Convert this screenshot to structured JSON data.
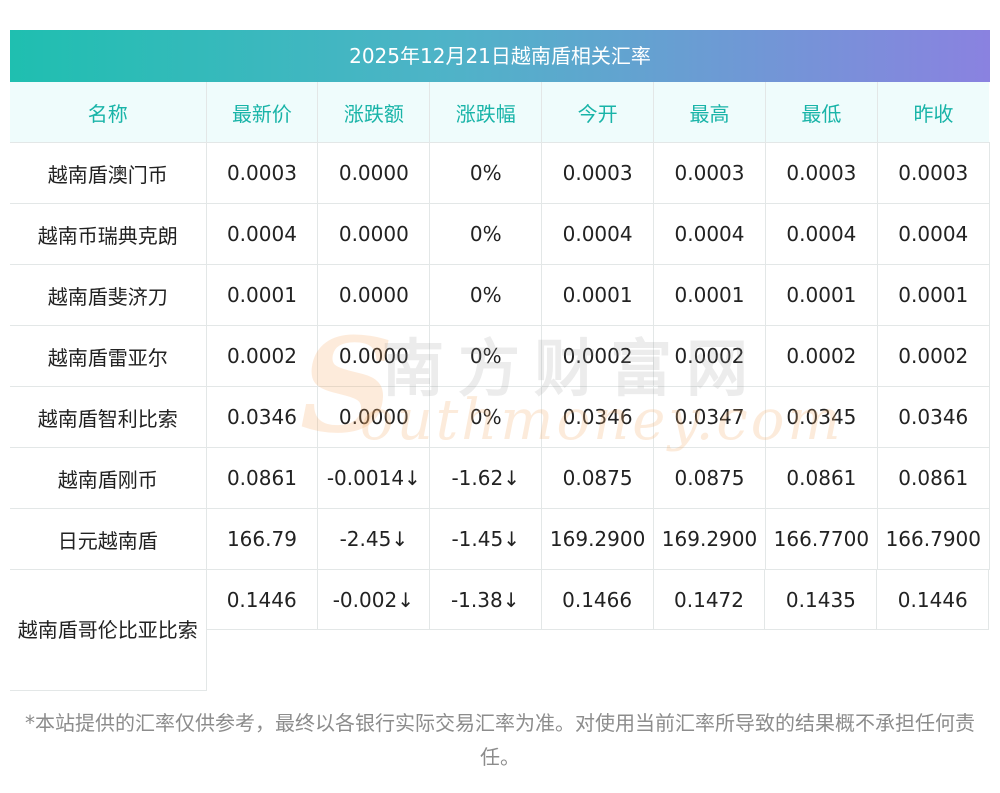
{
  "title": "2025年12月21日越南盾相关汇率",
  "headers": [
    "名称",
    "最新价",
    "涨跌额",
    "涨跌幅",
    "今开",
    "最高",
    "最低",
    "昨收"
  ],
  "rows": [
    {
      "name": "越南盾澳门币",
      "latest": "0.0003",
      "change": "0.0000",
      "pct": "0%",
      "open": "0.0003",
      "high": "0.0003",
      "low": "0.0003",
      "prev": "0.0003",
      "down": false
    },
    {
      "name": "越南币瑞典克朗",
      "latest": "0.0004",
      "change": "0.0000",
      "pct": "0%",
      "open": "0.0004",
      "high": "0.0004",
      "low": "0.0004",
      "prev": "0.0004",
      "down": false
    },
    {
      "name": "越南盾斐济刀",
      "latest": "0.0001",
      "change": "0.0000",
      "pct": "0%",
      "open": "0.0001",
      "high": "0.0001",
      "low": "0.0001",
      "prev": "0.0001",
      "down": false
    },
    {
      "name": "越南盾雷亚尔",
      "latest": "0.0002",
      "change": "0.0000",
      "pct": "0%",
      "open": "0.0002",
      "high": "0.0002",
      "low": "0.0002",
      "prev": "0.0002",
      "down": false
    },
    {
      "name": "越南盾智利比索",
      "latest": "0.0346",
      "change": "0.0000",
      "pct": "0%",
      "open": "0.0346",
      "high": "0.0347",
      "low": "0.0345",
      "prev": "0.0346",
      "down": false
    },
    {
      "name": "越南盾刚币",
      "latest": "0.0861",
      "change": "-0.0014↓",
      "pct": "-1.62↓",
      "open": "0.0875",
      "high": "0.0875",
      "low": "0.0861",
      "prev": "0.0861",
      "down": true
    },
    {
      "name": "日元越南盾",
      "latest": "166.79",
      "change": "-2.45↓",
      "pct": "-1.45↓",
      "open": "169.2900",
      "high": "169.2900",
      "low": "166.7700",
      "prev": "166.7900",
      "down": true
    },
    {
      "name": "越南盾哥伦比亚比索",
      "latest": "0.1446",
      "change": "-0.002↓",
      "pct": "-1.38↓",
      "open": "0.1466",
      "high": "0.1472",
      "low": "0.1435",
      "prev": "0.1446",
      "down": true
    }
  ],
  "watermark": {
    "cn": "南方财富网",
    "en": "outhmoney.com",
    "s": "S"
  },
  "footnote": "*本站提供的汇率仅供参考，最终以各银行实际交易汇率为准。对使用当前汇率所导致的结果概不承担任何责任。",
  "colors": {
    "header_text": "#19b4a8",
    "down": "#1a8a1a",
    "title_start": "#1fbfb0",
    "title_end": "#8a82e0"
  }
}
